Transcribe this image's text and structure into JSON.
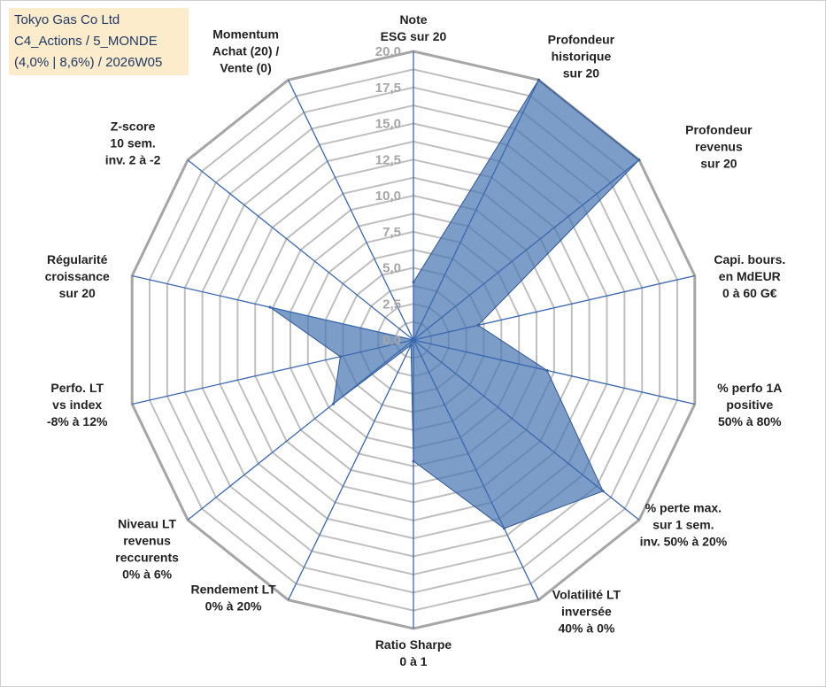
{
  "title_box": {
    "line1": "Tokyo Gas Co Ltd",
    "line2": "C4_Actions / 5_MONDE",
    "line3": "(4,0% | 8,6%) / 2026W05"
  },
  "chart_data": {
    "type": "radar",
    "rmin": 0,
    "rmax": 20,
    "ticks": [
      "0,0",
      "2,5",
      "5,0",
      "7,5",
      "10,0",
      "12,5",
      "15,0",
      "17,5",
      "20,0"
    ],
    "minor_step": 1.25,
    "axes": [
      {
        "label": [
          "Note",
          "ESG sur 20"
        ],
        "value": 4.0
      },
      {
        "label": [
          "Profondeur",
          "historique",
          "sur 20"
        ],
        "value": 20.0
      },
      {
        "label": [
          "Profondeur",
          "revenus",
          "sur 20"
        ],
        "value": 20.0
      },
      {
        "label": [
          "Capi. bours.",
          "en MdEUR",
          "0 à 60 G€"
        ],
        "value": 4.6
      },
      {
        "label": [
          "% perfo 1A",
          "positive",
          "50% à 80%"
        ],
        "value": 9.5
      },
      {
        "label": [
          "% perte max.",
          "sur 1 sem.",
          "inv. 50% à 20%"
        ],
        "value": 16.8
      },
      {
        "label": [
          "Volatilité LT",
          "inversée",
          "40% à 0%"
        ],
        "value": 14.5
      },
      {
        "label": [
          "Ratio Sharpe",
          "0 à 1"
        ],
        "value": 8.4
      },
      {
        "label": [
          "Rendement LT",
          "0% à 20%"
        ],
        "value": 0.4
      },
      {
        "label": [
          "Niveau LT",
          "revenus",
          "reccurents",
          "0% à 6%"
        ],
        "value": 7.1
      },
      {
        "label": [
          "Perfo. LT",
          "vs index",
          "-8% à 12%"
        ],
        "value": 5.2
      },
      {
        "label": [
          "Régularité",
          "croissance",
          "sur 20"
        ],
        "value": 10.2
      },
      {
        "label": [
          "Z-score",
          "10 sem.",
          "inv. 2 à -2"
        ],
        "value": 0.0
      },
      {
        "label": [
          "Momentum",
          "Achat (20) /",
          "Vente (0)"
        ],
        "value": 0.0
      }
    ],
    "colors": {
      "fill": "#4a77b1",
      "fill_opacity": 0.72,
      "stroke": "#2f5597",
      "grid": "#bfbfbf",
      "outer_grid": "#a6a6a6",
      "spoke": "#3a68b0"
    }
  }
}
